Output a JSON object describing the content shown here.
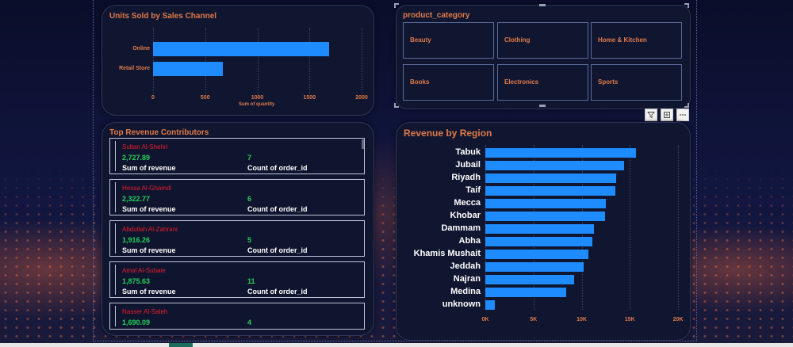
{
  "units_chart": {
    "title": "Units Sold by Sales Channel",
    "xlabel": "Sum of quantity",
    "ticks": [
      "0",
      "500",
      "1000",
      "1500",
      "2000"
    ]
  },
  "region_chart": {
    "title": "Revenue by Region",
    "ticks": [
      "0K",
      "5K",
      "10K",
      "15K",
      "20K"
    ]
  },
  "chart_data": [
    {
      "type": "bar",
      "orientation": "horizontal",
      "title": "Units Sold by Sales Channel",
      "xlabel": "Sum of quantity",
      "categories": [
        "Online",
        "Retail Store"
      ],
      "values": [
        1690,
        670
      ],
      "xlim": [
        0,
        2000
      ],
      "grid": true,
      "color": "#1e8cff"
    },
    {
      "type": "bar",
      "orientation": "horizontal",
      "title": "Revenue by Region",
      "categories": [
        "Tabuk",
        "Jubail",
        "Riyadh",
        "Taif",
        "Mecca",
        "Khobar",
        "Dammam",
        "Abha",
        "Khamis Mushait",
        "Jeddah",
        "Najran",
        "Medina",
        "unknown"
      ],
      "values": [
        15600,
        14400,
        13600,
        13500,
        12500,
        12400,
        11300,
        11100,
        10700,
        10200,
        9200,
        8400,
        1000
      ],
      "xlim": [
        0,
        20000
      ],
      "grid": true,
      "color": "#1e8cff"
    }
  ],
  "slicer": {
    "title": "product_category",
    "items": [
      "Beauty",
      "Clothing",
      "Home & Kitchen",
      "Books",
      "Electronics",
      "Sports"
    ]
  },
  "contributors": {
    "title": "Top Revenue Contributors",
    "revenue_label": "Sum of revenue",
    "count_label": "Count of order_id",
    "items": [
      {
        "name": "Sultan Al-Shehri",
        "revenue": "2,727.89",
        "count": "7"
      },
      {
        "name": "Hessa Al-Ghamdi",
        "revenue": "2,322.77",
        "count": "6"
      },
      {
        "name": "Abdullah Al-Zahrani",
        "revenue": "1,916.26",
        "count": "5"
      },
      {
        "name": "Amal Al-Subaie",
        "revenue": "1,875.63",
        "count": "11"
      },
      {
        "name": "Nasser Al-Saleh",
        "revenue": "1,690.09",
        "count": "4"
      }
    ]
  },
  "icons": {
    "filter": "filter-icon",
    "focus": "focus-mode-icon",
    "more": "more-options-icon"
  },
  "colors": {
    "accent": "#e07a4a",
    "bar": "#1e8cff",
    "name": "#e81c2c",
    "value": "#22d05a"
  }
}
